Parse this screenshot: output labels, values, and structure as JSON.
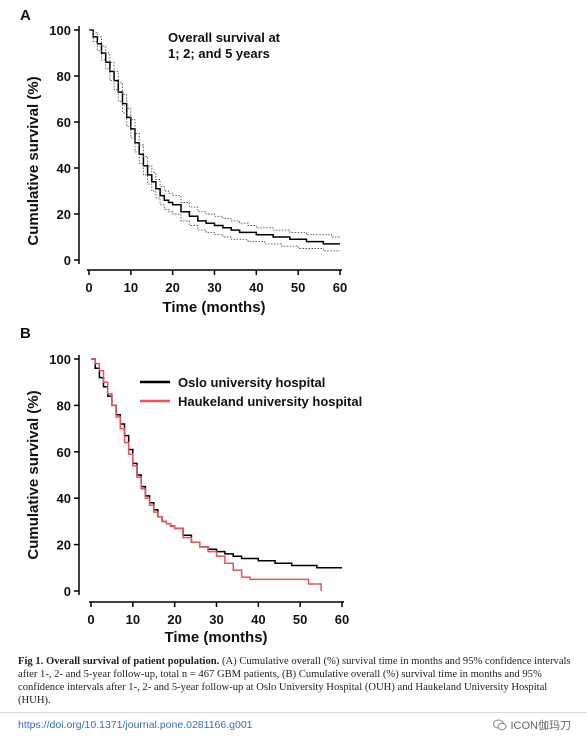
{
  "chart_data": [
    {
      "panel": "A",
      "type": "line",
      "xlabel": "Time (months)",
      "ylabel": "Cumulative survival (%)",
      "xlim": [
        0,
        60
      ],
      "ylim": [
        0,
        100
      ],
      "xticks": [
        0,
        10,
        20,
        30,
        40,
        50,
        60
      ],
      "yticks": [
        0,
        20,
        40,
        60,
        80,
        100
      ],
      "annotation": "Overall survival at\n1; 2; and 5 years",
      "series": [
        {
          "style": "solid",
          "x": [
            0,
            1,
            2,
            3,
            4,
            5,
            6,
            7,
            8,
            9,
            10,
            11,
            12,
            13,
            14,
            15,
            16,
            17,
            18,
            19,
            20,
            22,
            24,
            26,
            28,
            30,
            32,
            34,
            36,
            38,
            40,
            42,
            44,
            46,
            48,
            50,
            52,
            54,
            56,
            58,
            60
          ],
          "y": [
            100,
            97,
            94,
            90,
            86,
            82,
            78,
            73,
            68,
            62,
            57,
            51,
            46,
            41,
            37,
            34,
            31,
            28,
            26,
            25,
            24,
            21,
            19,
            17,
            16,
            15,
            14,
            13,
            12,
            12,
            11,
            11,
            10,
            10,
            9,
            9,
            8,
            8,
            7,
            7,
            7
          ]
        },
        {
          "style": "dotted",
          "x": [
            0,
            1,
            2,
            3,
            4,
            5,
            6,
            7,
            8,
            9,
            10,
            11,
            12,
            13,
            14,
            15,
            16,
            17,
            18,
            19,
            20,
            22,
            24,
            26,
            28,
            30,
            32,
            34,
            36,
            38,
            40,
            42,
            44,
            46,
            48,
            50,
            52,
            54,
            56,
            58,
            60
          ],
          "y": [
            100,
            99,
            97,
            93,
            90,
            86,
            82,
            77,
            72,
            66,
            61,
            55,
            50,
            45,
            41,
            38,
            35,
            32,
            30,
            29,
            28,
            25,
            23,
            21,
            20,
            19,
            18,
            17,
            16,
            15,
            14,
            14,
            13,
            13,
            12,
            12,
            11,
            11,
            11,
            10,
            10
          ]
        },
        {
          "style": "dotted",
          "x": [
            0,
            1,
            2,
            3,
            4,
            5,
            6,
            7,
            8,
            9,
            10,
            11,
            12,
            13,
            14,
            15,
            16,
            17,
            18,
            19,
            20,
            22,
            24,
            26,
            28,
            30,
            32,
            34,
            36,
            38,
            40,
            42,
            44,
            46,
            48,
            50,
            52,
            54,
            56,
            58,
            60
          ],
          "y": [
            100,
            95,
            91,
            87,
            83,
            78,
            74,
            69,
            64,
            58,
            53,
            47,
            42,
            37,
            33,
            30,
            27,
            24,
            22,
            21,
            20,
            17,
            15,
            13,
            12,
            11,
            10,
            9,
            9,
            8,
            8,
            7,
            7,
            6,
            6,
            5,
            5,
            5,
            4,
            4,
            4
          ]
        }
      ]
    },
    {
      "panel": "B",
      "type": "line",
      "xlabel": "Time (months)",
      "ylabel": "Cumulative survival (%)",
      "xlim": [
        0,
        60
      ],
      "ylim": [
        0,
        100
      ],
      "xticks": [
        0,
        10,
        20,
        30,
        40,
        50,
        60
      ],
      "yticks": [
        0,
        20,
        40,
        60,
        80,
        100
      ],
      "legend": "top-right",
      "series": [
        {
          "name": "Oslo university hospital",
          "color": "#000000",
          "x": [
            0,
            1,
            2,
            3,
            4,
            5,
            6,
            7,
            8,
            9,
            10,
            11,
            12,
            13,
            14,
            15,
            16,
            17,
            18,
            19,
            20,
            22,
            24,
            26,
            28,
            30,
            32,
            34,
            36,
            38,
            40,
            42,
            44,
            46,
            48,
            50,
            52,
            54,
            56,
            58,
            60
          ],
          "y": [
            100,
            96,
            92,
            88,
            84,
            80,
            76,
            72,
            67,
            61,
            55,
            50,
            45,
            41,
            38,
            35,
            32,
            30,
            29,
            28,
            27,
            24,
            21,
            19,
            18,
            17,
            16,
            15,
            14,
            14,
            13,
            13,
            12,
            12,
            11,
            11,
            11,
            10,
            10,
            10,
            10
          ]
        },
        {
          "name": "Haukeland university hospital",
          "color": "#e8535f",
          "x": [
            0,
            1,
            2,
            3,
            4,
            5,
            6,
            7,
            8,
            9,
            10,
            11,
            12,
            13,
            14,
            15,
            16,
            17,
            18,
            19,
            20,
            22,
            24,
            26,
            28,
            30,
            32,
            34,
            36,
            38,
            40,
            42,
            44,
            46,
            48,
            50,
            52,
            54,
            55
          ],
          "y": [
            100,
            98,
            95,
            90,
            85,
            80,
            75,
            70,
            64,
            59,
            54,
            49,
            44,
            40,
            37,
            34,
            32,
            30,
            29,
            28,
            27,
            23,
            21,
            19,
            17,
            15,
            12,
            9,
            6,
            5,
            5,
            5,
            5,
            5,
            5,
            5,
            3,
            3,
            0
          ]
        }
      ]
    }
  ],
  "caption": {
    "label": "Fig 1.",
    "title": "Overall survival of patient population.",
    "text": "(A) Cumulative overall (%) survival time in months and 95% confidence intervals after 1-, 2- and 5-year follow-up, total n = 467 GBM patients, (B) Cumulative overall (%) survival time in months and 95% confidence intervals after 1-, 2- and 5-year follow-up at Oslo University Hospital (OUH) and Haukeland University Hospital (HUH)."
  },
  "footer": {
    "doi": "https://doi.org/10.1371/journal.pone.0281166.g001",
    "watermark": "ICON伽玛刀"
  }
}
